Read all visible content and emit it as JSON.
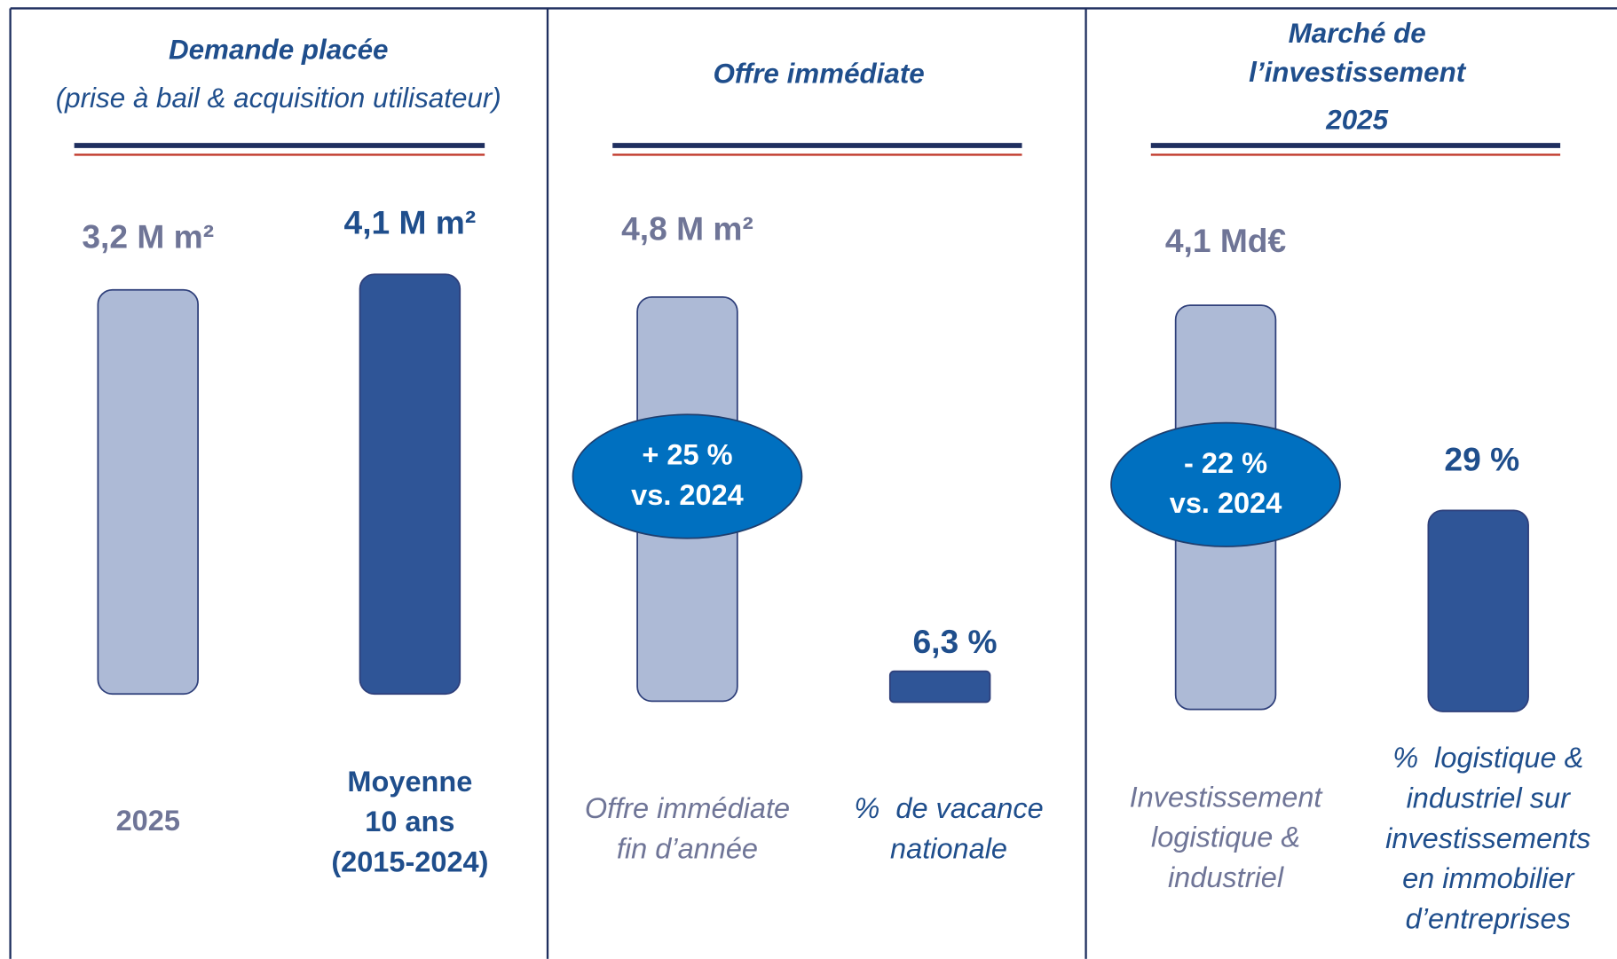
{
  "panels": [
    {
      "title": [
        "Demande placée",
        "(prise à bail & acquisition utilisateur)"
      ],
      "items": [
        {
          "value": "3,2 M m²",
          "label": [
            "2025"
          ]
        },
        {
          "value": "4,1 M m²",
          "label": [
            "Moyenne",
            "10 ans",
            "(2015-2024)"
          ]
        }
      ]
    },
    {
      "title": [
        "Offre immédiate"
      ],
      "items": [
        {
          "value": "4,8 M m²",
          "badge": [
            "+ 25 %",
            "vs. 2024"
          ],
          "label": [
            "Offre immédiate",
            "fin d’année"
          ]
        },
        {
          "value": "6,3 %",
          "label": [
            "%  de vacance",
            "nationale"
          ]
        }
      ]
    },
    {
      "title": [
        "Marché de",
        "l’investissement",
        "2025"
      ],
      "items": [
        {
          "value": "4,1 Md€",
          "badge": [
            "- 22 %",
            "vs. 2024"
          ],
          "label": [
            "Investissement",
            "logistique &",
            "industriel"
          ]
        },
        {
          "value": "29 %",
          "label": [
            "%  logistique &",
            "industriel sur",
            "investissements",
            "en immobilier",
            "d’entreprises"
          ]
        }
      ]
    }
  ]
}
